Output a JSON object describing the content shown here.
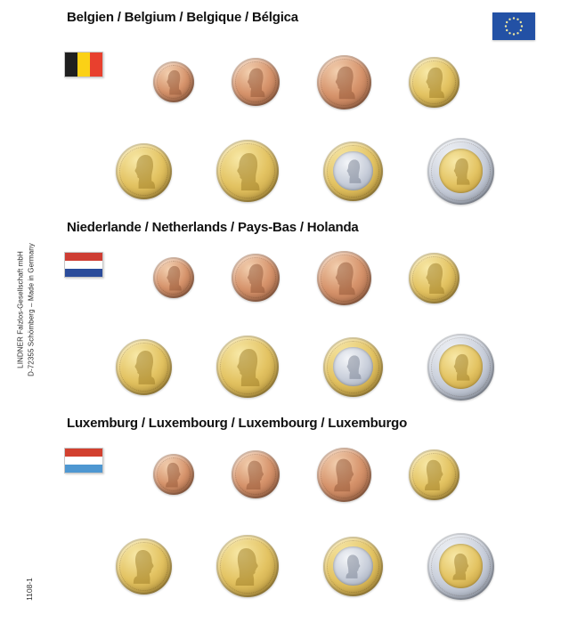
{
  "page": {
    "side_text_line1": "LINDNER Falzlos-Gesellschaft mbH",
    "side_text_line2": "D-72355 Schömberg – Made in Germany",
    "page_code": "1108-1",
    "background": "#FFFFFF"
  },
  "eu_flag": {
    "background": "#2351A5",
    "star_color": "#F0E8A0"
  },
  "coin_palette": {
    "copper": {
      "light": "#F3D0B0",
      "mid": "#D6936B",
      "dark": "#A06040",
      "portrait": "#8A4F30"
    },
    "gold": {
      "light": "#F8E9A8",
      "mid": "#E3C362",
      "dark": "#B28C30",
      "portrait": "#95741E"
    },
    "silver": {
      "light": "#F4F6F9",
      "mid": "#C8CEDA",
      "dark": "#959EAE",
      "portrait": "#6D7688"
    }
  },
  "sections": [
    {
      "id": "belgium",
      "title": "Belgien / Belgium / Belgique / Bélgica",
      "flag": {
        "orientation": "vertical",
        "stripes": [
          "#1F1F1F",
          "#FBD116",
          "#E8402E"
        ]
      },
      "portrait_facing": "left",
      "rows": [
        {
          "coins": [
            {
              "denom": "1-cent",
              "metal": "copper",
              "size": 46
            },
            {
              "denom": "2-cent",
              "metal": "copper",
              "size": 54
            },
            {
              "denom": "5-cent",
              "metal": "copper",
              "size": 61
            },
            {
              "denom": "10-cent",
              "metal": "gold",
              "size": 57
            }
          ]
        },
        {
          "coins": [
            {
              "denom": "20-cent",
              "metal": "gold",
              "size": 63
            },
            {
              "denom": "50-cent",
              "metal": "gold",
              "size": 70
            },
            {
              "denom": "1-euro",
              "metal": "bimetal-silver-center",
              "size": 67
            },
            {
              "denom": "2-euro",
              "metal": "bimetal-gold-center",
              "size": 75
            }
          ]
        }
      ]
    },
    {
      "id": "netherlands",
      "title": "Niederlande / Netherlands / Pays-Bas / Holanda",
      "flag": {
        "orientation": "horizontal",
        "stripes": [
          "#CE3D33",
          "#FFFFFF",
          "#2B4C9B"
        ]
      },
      "portrait_facing": "left",
      "rows": [
        {
          "coins": [
            {
              "denom": "1-cent",
              "metal": "copper",
              "size": 46
            },
            {
              "denom": "2-cent",
              "metal": "copper",
              "size": 54
            },
            {
              "denom": "5-cent",
              "metal": "copper",
              "size": 61
            },
            {
              "denom": "10-cent",
              "metal": "gold",
              "size": 57
            }
          ]
        },
        {
          "coins": [
            {
              "denom": "20-cent",
              "metal": "gold",
              "size": 63
            },
            {
              "denom": "50-cent",
              "metal": "gold",
              "size": 70
            },
            {
              "denom": "1-euro",
              "metal": "bimetal-silver-center",
              "size": 67
            },
            {
              "denom": "2-euro",
              "metal": "bimetal-gold-center",
              "size": 75
            }
          ]
        }
      ]
    },
    {
      "id": "luxembourg",
      "title": "Luxemburg / Luxembourg / Luxembourg / Luxemburgo",
      "flag": {
        "orientation": "horizontal",
        "stripes": [
          "#D2402F",
          "#FFFFFF",
          "#4E97D1"
        ]
      },
      "portrait_facing": "right",
      "rows": [
        {
          "coins": [
            {
              "denom": "1-cent",
              "metal": "copper",
              "size": 46
            },
            {
              "denom": "2-cent",
              "metal": "copper",
              "size": 54
            },
            {
              "denom": "5-cent",
              "metal": "copper",
              "size": 61
            },
            {
              "denom": "10-cent",
              "metal": "gold",
              "size": 57
            }
          ]
        },
        {
          "coins": [
            {
              "denom": "20-cent",
              "metal": "gold",
              "size": 63
            },
            {
              "denom": "50-cent",
              "metal": "gold",
              "size": 70
            },
            {
              "denom": "1-euro",
              "metal": "bimetal-silver-center",
              "size": 67
            },
            {
              "denom": "2-euro",
              "metal": "bimetal-gold-center",
              "size": 75
            }
          ]
        }
      ]
    }
  ]
}
